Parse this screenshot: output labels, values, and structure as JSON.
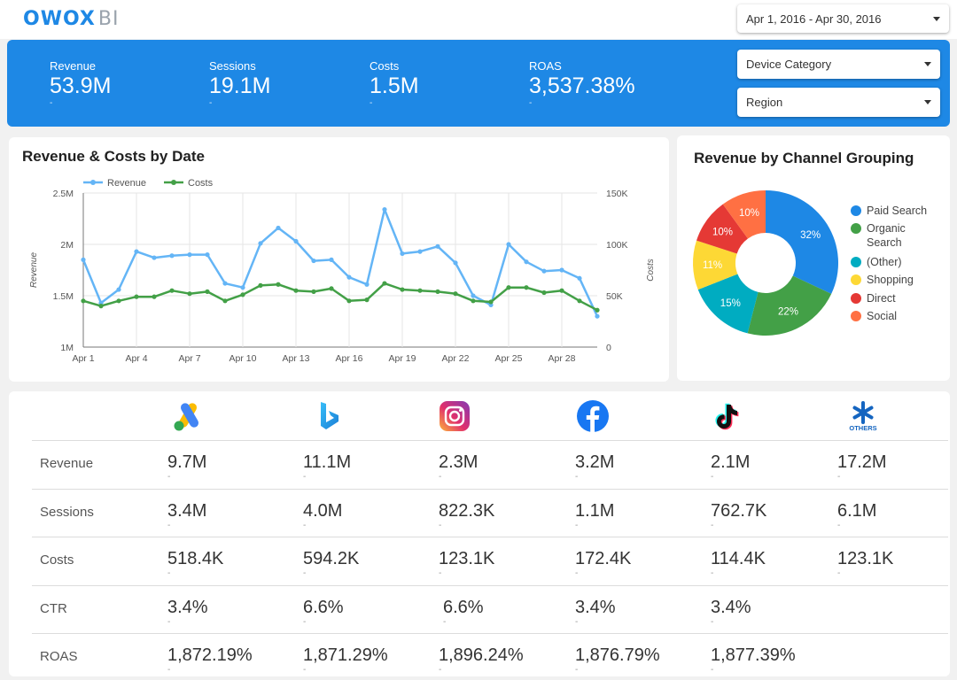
{
  "brand": {
    "name": "OWOX",
    "suffix": "BI"
  },
  "filters": {
    "date_range": "Apr 1, 2016 - Apr 30, 2016",
    "device_category": "Device Category",
    "region": "Region"
  },
  "kpis": [
    {
      "label": "Revenue",
      "value": "53.9M",
      "sub": "-"
    },
    {
      "label": "Sessions",
      "value": "19.1M",
      "sub": "-"
    },
    {
      "label": "Costs",
      "value": "1.5M",
      "sub": "-"
    },
    {
      "label": "ROAS",
      "value": "3,537.38%",
      "sub": "-"
    }
  ],
  "line_chart": {
    "title": "Revenue & Costs by Date",
    "chart_data": {
      "type": "line",
      "x": [
        "Apr 1",
        "Apr 2",
        "Apr 3",
        "Apr 4",
        "Apr 5",
        "Apr 6",
        "Apr 7",
        "Apr 8",
        "Apr 9",
        "Apr 10",
        "Apr 11",
        "Apr 12",
        "Apr 13",
        "Apr 14",
        "Apr 15",
        "Apr 16",
        "Apr 17",
        "Apr 18",
        "Apr 19",
        "Apr 20",
        "Apr 21",
        "Apr 22",
        "Apr 23",
        "Apr 24",
        "Apr 25",
        "Apr 26",
        "Apr 27",
        "Apr 28",
        "Apr 29",
        "Apr 30"
      ],
      "x_tick_labels": [
        "Apr 1",
        "Apr 4",
        "Apr 7",
        "Apr 10",
        "Apr 13",
        "Apr 16",
        "Apr 19",
        "Apr 22",
        "Apr 25",
        "Apr 28"
      ],
      "series": [
        {
          "name": "Revenue",
          "axis": "left",
          "color": "#64b5f6",
          "values": [
            1850000,
            1430000,
            1560000,
            1930000,
            1870000,
            1890000,
            1900000,
            1900000,
            1620000,
            1580000,
            2010000,
            2160000,
            2030000,
            1840000,
            1850000,
            1680000,
            1610000,
            2340000,
            1910000,
            1930000,
            1980000,
            1820000,
            1500000,
            1410000,
            2000000,
            1830000,
            1740000,
            1750000,
            1670000,
            1300000
          ]
        },
        {
          "name": "Costs",
          "axis": "right",
          "color": "#43a047",
          "values": [
            45000,
            40000,
            45000,
            49000,
            49000,
            55000,
            52000,
            54000,
            45000,
            51000,
            60000,
            61000,
            55000,
            54000,
            57000,
            45000,
            46000,
            62000,
            56000,
            55000,
            54000,
            52000,
            45000,
            44000,
            58000,
            58000,
            53000,
            55000,
            45000,
            36000
          ]
        }
      ],
      "y_left": {
        "label": "Revenue",
        "range": [
          1000000,
          2500000
        ],
        "ticks": [
          1000000,
          1500000,
          2000000,
          2500000
        ],
        "tick_labels": [
          "1M",
          "1.5M",
          "2M",
          "2.5M"
        ]
      },
      "y_right": {
        "label": "Costs",
        "range": [
          0,
          150000
        ],
        "ticks": [
          0,
          50000,
          100000,
          150000
        ],
        "tick_labels": [
          "0",
          "50K",
          "100K",
          "150K"
        ]
      },
      "grid": true,
      "legend": "top-left"
    }
  },
  "pie_chart": {
    "title": "Revenue by Channel Grouping",
    "chart_data": {
      "type": "pie",
      "donut": true,
      "slices": [
        {
          "name": "Paid Search",
          "value": 32,
          "label": "32%",
          "color": "#1e88e5"
        },
        {
          "name": "Organic Search",
          "value": 22,
          "label": "22%",
          "color": "#43a047"
        },
        {
          "name": "(Other)",
          "value": 15,
          "label": "15%",
          "color": "#00acc1"
        },
        {
          "name": "Shopping",
          "value": 11,
          "label": "11%",
          "color": "#fdd835"
        },
        {
          "name": "Direct",
          "value": 10,
          "label": "10%",
          "color": "#e53935"
        },
        {
          "name": "Social",
          "value": 10,
          "label": "10%",
          "color": "#ff7043"
        }
      ],
      "legend": "right"
    }
  },
  "channel_table": {
    "channels": [
      {
        "icon": "google-ads-icon",
        "name": "Google Ads"
      },
      {
        "icon": "bing-icon",
        "name": "Bing"
      },
      {
        "icon": "instagram-icon",
        "name": "Instagram"
      },
      {
        "icon": "facebook-icon",
        "name": "Facebook"
      },
      {
        "icon": "tiktok-icon",
        "name": "TikTok"
      },
      {
        "icon": "others-icon",
        "name": "Others",
        "text": "OTHERS"
      }
    ],
    "rows": [
      {
        "label": "Revenue",
        "values": [
          "9.7M",
          "11.1M",
          "2.3M",
          "3.2M",
          "2.1M",
          "17.2M"
        ],
        "subs": [
          "-",
          "-",
          "-",
          "-",
          "-",
          "-"
        ]
      },
      {
        "label": "Sessions",
        "values": [
          "3.4M",
          "4.0M",
          "822.3K",
          "1.1M",
          "762.7K",
          "6.1M"
        ],
        "subs": [
          "-",
          "-",
          "-",
          "-",
          "-",
          "-"
        ]
      },
      {
        "label": "Costs",
        "values": [
          "518.4K",
          "594.2K",
          "123.1K",
          "172.4K",
          "114.4K",
          "123.1K"
        ],
        "subs": [
          "-",
          "-",
          "-",
          "-",
          "-",
          "-"
        ]
      },
      {
        "label": "CTR",
        "values": [
          "3.4%",
          "6.6%",
          "6.6%",
          "3.4%",
          "3.4%",
          ""
        ],
        "subs": [
          "-",
          "-",
          "-",
          "-",
          "-",
          ""
        ]
      },
      {
        "label": "ROAS",
        "values": [
          "1,872.19%",
          "1,871.29%",
          "1,896.24%",
          "1,876.79%",
          "1,877.39%",
          ""
        ],
        "subs": [
          "-",
          "-",
          "-",
          "-",
          "-",
          ""
        ]
      }
    ]
  }
}
